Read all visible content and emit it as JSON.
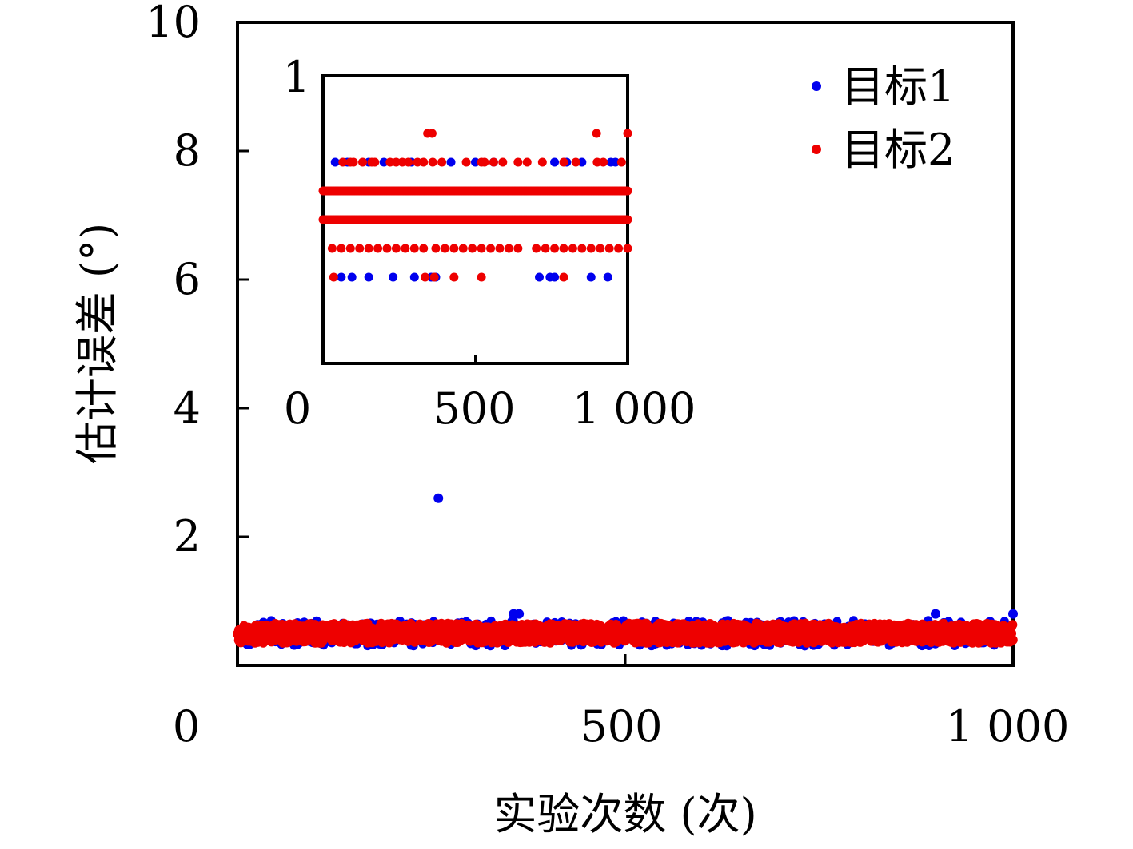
{
  "chart_data": [
    {
      "type": "scatter",
      "xlabel": "实验次数 (次)",
      "ylabel": "估计误差 (°)",
      "xlim": [
        0,
        1000
      ],
      "ylim": [
        0,
        10
      ],
      "xticks": [
        0,
        500,
        1000
      ],
      "xtick_labels": [
        "0",
        "500",
        "1 000"
      ],
      "yticks": [
        2,
        4,
        6,
        8,
        10
      ],
      "ytick_labels": [
        "2",
        "4",
        "6",
        "8",
        "10"
      ],
      "legend": {
        "position": "top-right",
        "entries": [
          "目标1",
          "目标2"
        ]
      },
      "grid": false,
      "series": [
        {
          "name": "目标1",
          "color": "#0000ee",
          "typical_range": [
            0.3,
            0.7
          ],
          "outliers": [
            {
              "x": 259,
              "y": 2.6
            },
            {
              "x": 356,
              "y": 0.8
            },
            {
              "x": 363,
              "y": 0.8
            },
            {
              "x": 900,
              "y": 0.8
            },
            {
              "x": 1000,
              "y": 0.8
            }
          ]
        },
        {
          "name": "目标2",
          "color": "#ee0000",
          "typical_range": [
            0.3,
            0.7
          ]
        }
      ]
    },
    {
      "type": "scatter",
      "inset": true,
      "xlim": [
        0,
        1000
      ],
      "ylim": [
        0,
        1
      ],
      "xticks": [
        0,
        500,
        1000
      ],
      "xtick_labels": [
        "0",
        "500",
        "1 000"
      ],
      "yticks": [
        1
      ],
      "ytick_labels": [
        "1"
      ],
      "levels": [
        0.8,
        0.7,
        0.6,
        0.5,
        0.4,
        0.3
      ],
      "series": [
        {
          "name": "目标1",
          "color": "#0000ee",
          "points_by_level": {
            "0.7": [
              40,
              80,
              150,
              200,
              290,
              420,
              500,
              560,
              760,
              800,
              850,
              945,
              960
            ],
            "0.3": [
              60,
              95,
              150,
              230,
              300,
              355,
              370,
              710,
              745,
              760,
              880,
              935
            ]
          }
        },
        {
          "name": "目标2",
          "color": "#ee0000",
          "points_by_level": {
            "0.8": [
              343,
              358,
              898,
              1000
            ],
            "0.7": [
              65,
              90,
              100,
              130,
              160,
              170,
              220,
              240,
              260,
              280,
              310,
              330,
              360,
              390,
              470,
              520,
              530,
              560,
              590,
              640,
              670,
              720,
              790,
              830,
              900,
              920,
              980
            ],
            "0.4": [
              30,
              60,
              90,
              120,
              150,
              180,
              210,
              240,
              270,
              300,
              330,
              370,
              400,
              430,
              460,
              490,
              520,
              550,
              580,
              610,
              640,
              700,
              730,
              760,
              790,
              820,
              850,
              880,
              910,
              940,
              970,
              1000
            ],
            "0.3": [
              35,
              335,
              365,
              430,
              520,
              790
            ]
          }
        }
      ]
    }
  ]
}
